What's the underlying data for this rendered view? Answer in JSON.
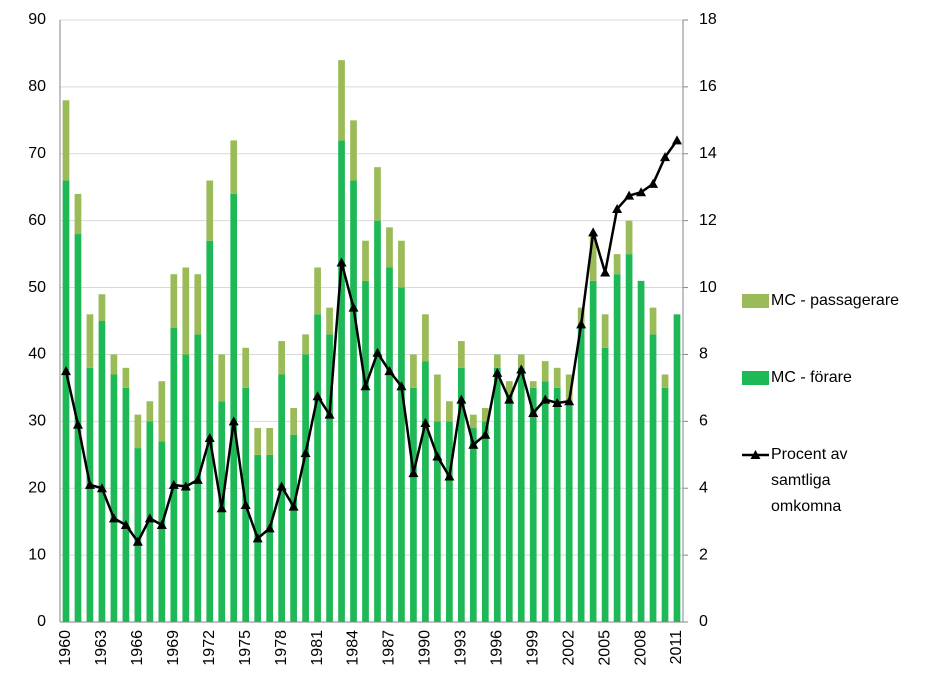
{
  "chart_data": {
    "type": "bar",
    "categories": [
      "1960",
      null,
      null,
      "1963",
      null,
      null,
      "1966",
      null,
      null,
      "1969",
      null,
      null,
      "1972",
      null,
      null,
      "1975",
      null,
      null,
      "1978",
      null,
      null,
      "1981",
      null,
      null,
      "1984",
      null,
      null,
      "1987",
      null,
      null,
      "1990",
      null,
      null,
      "1993",
      null,
      null,
      "1996",
      null,
      null,
      "1999",
      null,
      null,
      "2002",
      null,
      null,
      "2005",
      null,
      null,
      "2008",
      null,
      null,
      "2011"
    ],
    "series": [
      {
        "name": "MC - förare",
        "color": "#1fb856",
        "type": "bar",
        "values": [
          66,
          58,
          38,
          45,
          37,
          35,
          26,
          30,
          27,
          44,
          40,
          43,
          57,
          33,
          64,
          35,
          25,
          25,
          37,
          28,
          40,
          46,
          43,
          72,
          66,
          51,
          60,
          53,
          50,
          35,
          39,
          30,
          30,
          38,
          29,
          30,
          38,
          34,
          38,
          35,
          36,
          35,
          33,
          44,
          51,
          41,
          52,
          55,
          51,
          43,
          35,
          46
        ]
      },
      {
        "name": "MC - passagerare",
        "color": "#9bbb59",
        "type": "bar",
        "values": [
          12,
          6,
          8,
          4,
          3,
          3,
          5,
          3,
          9,
          8,
          13,
          9,
          9,
          7,
          8,
          6,
          4,
          4,
          5,
          4,
          3,
          7,
          4,
          12,
          9,
          6,
          8,
          6,
          7,
          5,
          7,
          7,
          3,
          4,
          2,
          2,
          2,
          2,
          2,
          1,
          3,
          3,
          4,
          3,
          7,
          5,
          3,
          5,
          0,
          4,
          2,
          0
        ]
      },
      {
        "name": "Procent av samtliga omkomna",
        "color": "#000000",
        "type": "line",
        "axis": "y2",
        "values": [
          7.5,
          5.9,
          4.1,
          4.0,
          3.1,
          2.9,
          2.4,
          3.1,
          2.9,
          4.1,
          4.05,
          4.25,
          5.5,
          3.4,
          6.0,
          3.5,
          2.5,
          2.8,
          4.05,
          3.45,
          5.05,
          6.75,
          6.2,
          10.75,
          9.4,
          7.05,
          8.05,
          7.5,
          7.05,
          4.45,
          5.95,
          4.95,
          4.35,
          6.65,
          5.3,
          5.6,
          7.45,
          6.65,
          7.55,
          6.25,
          6.65,
          6.55,
          6.6,
          8.9,
          11.65,
          10.45,
          12.35,
          12.75,
          12.85,
          13.1,
          13.9,
          14.4
        ]
      }
    ],
    "ylim": [
      0,
      90
    ],
    "yticks": [
      0,
      10,
      20,
      30,
      40,
      50,
      60,
      70,
      80,
      90
    ],
    "y2lim": [
      0,
      18
    ],
    "y2ticks": [
      0,
      2,
      4,
      6,
      8,
      10,
      12,
      14,
      16,
      18
    ],
    "grid": true,
    "stacked": true,
    "legend": "right"
  }
}
